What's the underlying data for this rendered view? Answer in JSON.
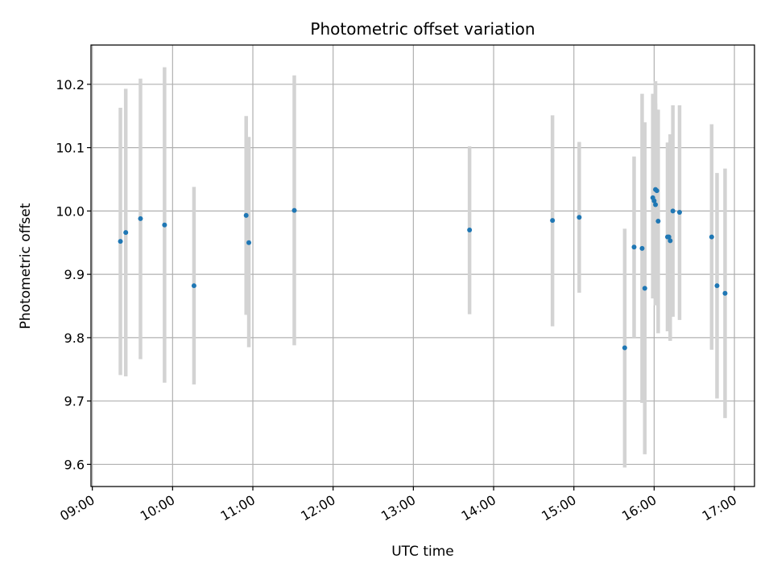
{
  "chart_data": {
    "type": "scatter",
    "title": "Photometric offset variation",
    "xlabel": "UTC time",
    "ylabel": "Photometric offset",
    "x_ticks": [
      "09:00",
      "10:00",
      "11:00",
      "12:00",
      "13:00",
      "14:00",
      "15:00",
      "16:00",
      "17:00"
    ],
    "y_ticks": [
      "9.6",
      "9.7",
      "9.8",
      "9.9",
      "10.0",
      "10.1",
      "10.2"
    ],
    "xlim": [
      "08:59",
      "17:15"
    ],
    "ylim": [
      9.565,
      10.262
    ],
    "grid": true,
    "colors": {
      "point": "#1f77b4",
      "errorbar": "#d3d3d3",
      "grid": "#b0b0b0"
    },
    "points": [
      {
        "t": "09:21",
        "y": 9.952,
        "lo": 9.741,
        "hi": 10.163
      },
      {
        "t": "09:25",
        "y": 9.966,
        "lo": 9.739,
        "hi": 10.193
      },
      {
        "t": "09:36",
        "y": 9.988,
        "lo": 9.766,
        "hi": 10.209
      },
      {
        "t": "09:54",
        "y": 9.978,
        "lo": 9.729,
        "hi": 10.227
      },
      {
        "t": "10:16",
        "y": 9.882,
        "lo": 9.726,
        "hi": 10.038
      },
      {
        "t": "10:55",
        "y": 9.993,
        "lo": 9.836,
        "hi": 10.15
      },
      {
        "t": "10:57",
        "y": 9.95,
        "lo": 9.785,
        "hi": 10.117
      },
      {
        "t": "11:31",
        "y": 10.001,
        "lo": 9.788,
        "hi": 10.214
      },
      {
        "t": "13:42",
        "y": 9.97,
        "lo": 9.837,
        "hi": 10.102
      },
      {
        "t": "14:44",
        "y": 9.985,
        "lo": 9.818,
        "hi": 10.151
      },
      {
        "t": "15:04",
        "y": 9.99,
        "lo": 9.871,
        "hi": 10.109
      },
      {
        "t": "15:38",
        "y": 9.784,
        "lo": 9.595,
        "hi": 9.972
      },
      {
        "t": "15:45",
        "y": 9.943,
        "lo": 9.8,
        "hi": 10.086
      },
      {
        "t": "15:51",
        "y": 9.941,
        "lo": 9.697,
        "hi": 10.185
      },
      {
        "t": "15:53",
        "y": 9.878,
        "lo": 9.616,
        "hi": 10.14
      },
      {
        "t": "15:59",
        "y": 10.021,
        "lo": 9.862,
        "hi": 10.185
      },
      {
        "t": "16:00",
        "y": 10.016,
        "lo": 9.895,
        "hi": 10.137
      },
      {
        "t": "16:01",
        "y": 10.034,
        "lo": 9.862,
        "hi": 10.205
      },
      {
        "t": "16:01",
        "y": 10.01,
        "lo": 9.851,
        "hi": 10.17
      },
      {
        "t": "16:02",
        "y": 10.032,
        "lo": 9.904,
        "hi": 10.16
      },
      {
        "t": "16:03",
        "y": 9.984,
        "lo": 9.807,
        "hi": 10.16
      },
      {
        "t": "16:10",
        "y": 9.959,
        "lo": 9.81,
        "hi": 10.108
      },
      {
        "t": "16:11",
        "y": 9.959,
        "lo": 9.81,
        "hi": 10.108
      },
      {
        "t": "16:12",
        "y": 9.953,
        "lo": 9.795,
        "hi": 10.121
      },
      {
        "t": "16:14",
        "y": 10.0,
        "lo": 9.833,
        "hi": 10.167
      },
      {
        "t": "16:19",
        "y": 9.998,
        "lo": 9.828,
        "hi": 10.167
      },
      {
        "t": "16:43",
        "y": 9.959,
        "lo": 9.781,
        "hi": 10.137
      },
      {
        "t": "16:47",
        "y": 9.882,
        "lo": 9.704,
        "hi": 10.06
      },
      {
        "t": "16:53",
        "y": 9.87,
        "lo": 9.673,
        "hi": 10.067
      }
    ]
  }
}
